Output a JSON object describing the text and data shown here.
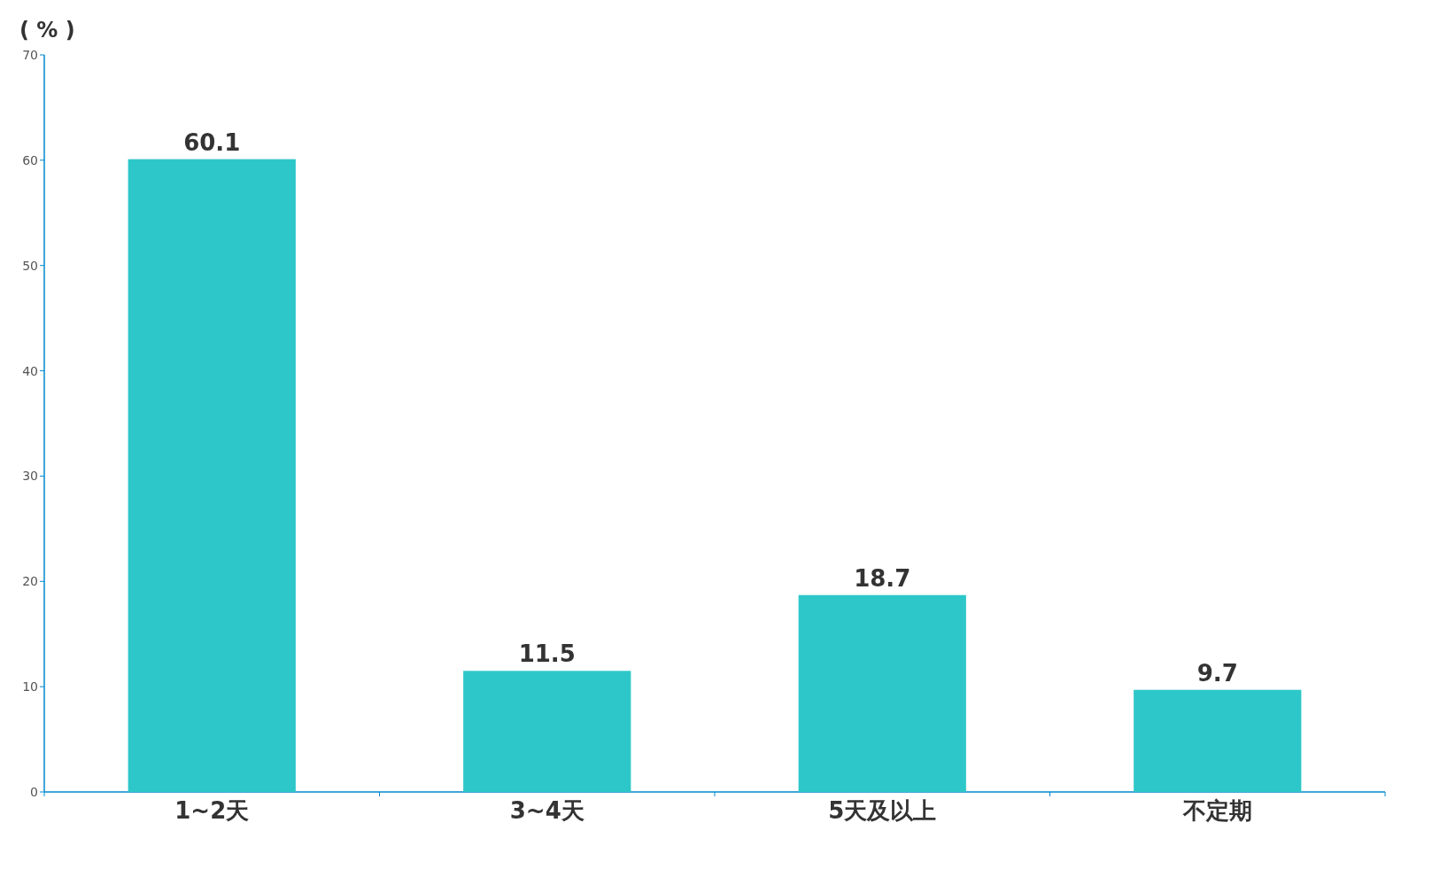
{
  "chart_data": {
    "type": "bar",
    "ylabel": "( % )",
    "categories": [
      "1~2天",
      "3~4天",
      "5天及以上",
      "不定期"
    ],
    "values": [
      60.1,
      11.5,
      18.7,
      9.7
    ],
    "color": "#2ec7c9",
    "ylim": [
      0,
      70
    ],
    "yticks": [
      0,
      10,
      20,
      30,
      40,
      50,
      60,
      70
    ],
    "grid": false,
    "data_labels": true
  }
}
